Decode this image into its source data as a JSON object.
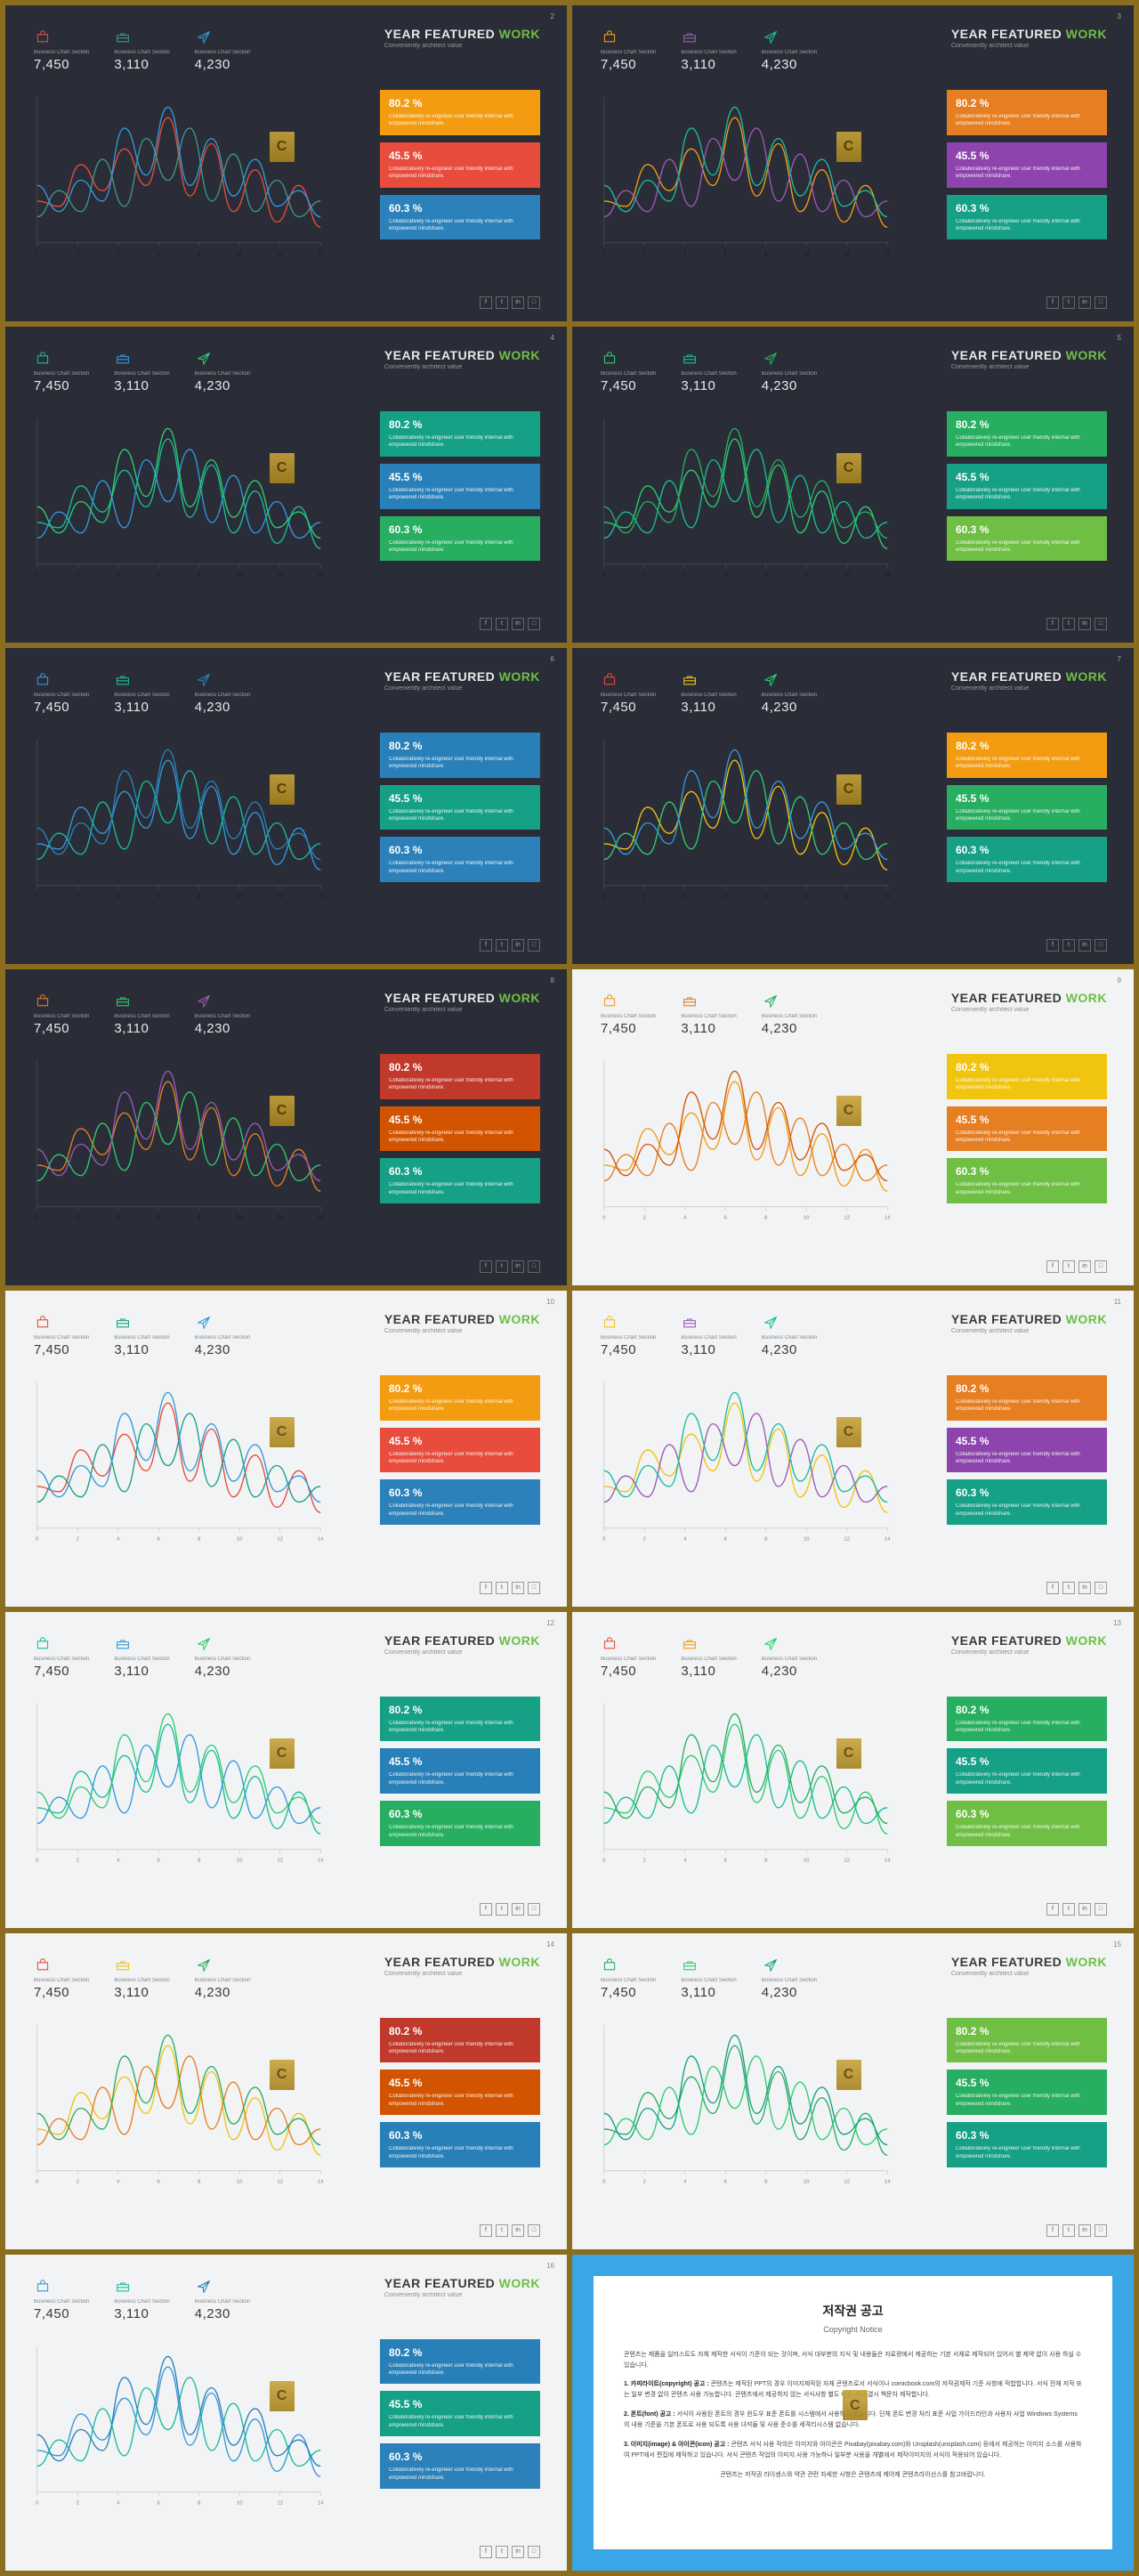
{
  "title": {
    "line1_a": "YEAR FEATURED ",
    "line1_b": "WORK",
    "sub": "Conveniently architect value"
  },
  "stats": [
    {
      "label": "Business Chart Section",
      "value": "7,450"
    },
    {
      "label": "Business Chart Section",
      "value": "3,110"
    },
    {
      "label": "Business Chart Section",
      "value": "4,230"
    }
  ],
  "kpi_text": {
    "desc": "Collaboratively re-engineer user friendly internal with empowered mindshare."
  },
  "kpi_pcts": [
    "80.2 %",
    "45.5 %",
    "60.3 %"
  ],
  "chart": {
    "xticks": [
      "0",
      "2",
      "4",
      "6",
      "8",
      "10",
      "12",
      "14"
    ],
    "series_y": {
      "a": [
        40,
        35,
        75,
        50,
        90,
        55,
        120,
        45,
        95,
        30,
        70,
        20,
        55,
        15
      ],
      "b": [
        25,
        50,
        30,
        80,
        35,
        100,
        60,
        110,
        40,
        85,
        30,
        60,
        25,
        40
      ],
      "c": [
        55,
        30,
        60,
        40,
        110,
        65,
        130,
        55,
        100,
        45,
        80,
        35,
        50,
        25
      ]
    }
  },
  "socials": [
    "f",
    "t",
    "in",
    "□"
  ],
  "watermark": "C",
  "palettes": [
    {
      "bg": "dark",
      "title_accent": "#6fbf44",
      "icons": [
        "#e84c3d",
        "#3f9688",
        "#3498db"
      ],
      "lines": [
        "#e84c3d",
        "#3f9688",
        "#3498db"
      ],
      "kpis": [
        "#f39c12",
        "#e74c3c",
        "#2c81ba"
      ]
    },
    {
      "bg": "dark",
      "title_accent": "#6fbf44",
      "icons": [
        "#f39c12",
        "#9b59b6",
        "#1abc9c"
      ],
      "lines": [
        "#f39c12",
        "#9b59b6",
        "#1abc9c"
      ],
      "kpis": [
        "#e67e22",
        "#8e44ad",
        "#16a085"
      ]
    },
    {
      "bg": "dark",
      "title_accent": "#6fbf44",
      "icons": [
        "#1abc9c",
        "#3498db",
        "#2ecc71"
      ],
      "lines": [
        "#1abc9c",
        "#3498db",
        "#2ecc71"
      ],
      "kpis": [
        "#16a085",
        "#2980b9",
        "#27ae60"
      ]
    },
    {
      "bg": "dark",
      "title_accent": "#6fbf44",
      "icons": [
        "#2ecc71",
        "#1abc9c",
        "#27ae60"
      ],
      "lines": [
        "#2ecc71",
        "#1abc9c",
        "#27ae60"
      ],
      "kpis": [
        "#27ae60",
        "#16a085",
        "#6fbf44"
      ]
    },
    {
      "bg": "dark",
      "title_accent": "#6fbf44",
      "icons": [
        "#3498db",
        "#1abc9c",
        "#2980b9"
      ],
      "lines": [
        "#3498db",
        "#1abc9c",
        "#2980b9"
      ],
      "kpis": [
        "#2980b9",
        "#16a085",
        "#2c81ba"
      ]
    },
    {
      "bg": "dark",
      "title_accent": "#6fbf44",
      "icons": [
        "#e74c3c",
        "#f1c40f",
        "#2ecc71"
      ],
      "lines": [
        "#f1c40f",
        "#2ecc71",
        "#3498db"
      ],
      "kpis": [
        "#f39c12",
        "#27ae60",
        "#16a085"
      ]
    },
    {
      "bg": "dark",
      "title_accent": "#6fbf44",
      "icons": [
        "#e67e22",
        "#2ecc71",
        "#9b59b6"
      ],
      "lines": [
        "#e67e22",
        "#2ecc71",
        "#9b59b6"
      ],
      "kpis": [
        "#c0392b",
        "#d35400",
        "#16a085"
      ]
    },
    {
      "bg": "light",
      "title_accent": "#6fbf44",
      "icons": [
        "#f39c12",
        "#e67e22",
        "#27ae60"
      ],
      "lines": [
        "#f39c12",
        "#e67e22",
        "#d35400"
      ],
      "kpis": [
        "#f1c40f",
        "#e67e22",
        "#6fbf44"
      ]
    },
    {
      "bg": "light",
      "title_accent": "#6fbf44",
      "icons": [
        "#e74c3c",
        "#16a085",
        "#3498db"
      ],
      "lines": [
        "#e74c3c",
        "#16a085",
        "#3498db"
      ],
      "kpis": [
        "#f39c12",
        "#e74c3c",
        "#2c81ba"
      ]
    },
    {
      "bg": "light",
      "title_accent": "#6fbf44",
      "icons": [
        "#f1c40f",
        "#9b59b6",
        "#1abc9c"
      ],
      "lines": [
        "#f1c40f",
        "#9b59b6",
        "#1abc9c"
      ],
      "kpis": [
        "#e67e22",
        "#8e44ad",
        "#16a085"
      ]
    },
    {
      "bg": "light",
      "title_accent": "#6fbf44",
      "icons": [
        "#1abc9c",
        "#3498db",
        "#2ecc71"
      ],
      "lines": [
        "#1abc9c",
        "#3498db",
        "#2ecc71"
      ],
      "kpis": [
        "#16a085",
        "#2980b9",
        "#27ae60"
      ]
    },
    {
      "bg": "light",
      "title_accent": "#6fbf44",
      "icons": [
        "#e74c3c",
        "#f39c12",
        "#2ecc71"
      ],
      "lines": [
        "#2ecc71",
        "#1abc9c",
        "#27ae60"
      ],
      "kpis": [
        "#27ae60",
        "#16a085",
        "#6fbf44"
      ]
    },
    {
      "bg": "light",
      "title_accent": "#6fbf44",
      "icons": [
        "#e74c3c",
        "#f1c40f",
        "#27ae60"
      ],
      "lines": [
        "#f1c40f",
        "#e67e22",
        "#27ae60"
      ],
      "kpis": [
        "#c0392b",
        "#d35400",
        "#2980b9"
      ]
    },
    {
      "bg": "light",
      "title_accent": "#6fbf44",
      "icons": [
        "#27ae60",
        "#2ecc71",
        "#16a085"
      ],
      "lines": [
        "#27ae60",
        "#2ecc71",
        "#16a085"
      ],
      "kpis": [
        "#6fbf44",
        "#27ae60",
        "#16a085"
      ]
    },
    {
      "bg": "light",
      "title_accent": "#6fbf44",
      "icons": [
        "#3498db",
        "#1abc9c",
        "#2980b9"
      ],
      "lines": [
        "#3498db",
        "#1abc9c",
        "#2980b9"
      ],
      "kpis": [
        "#2980b9",
        "#16a085",
        "#2c81ba"
      ]
    }
  ],
  "copyright": {
    "heading": "저작권 공고",
    "sub": "Copyright Notice",
    "para1": "콘텐츠는 제품을 일러스트도 자체 제작한 서식이 기준이 되는 것이며, 서식 대부분의 지식 및 내용들은 자료량에서 제공하는 기본 서체로 제작되어 있어서 별 제약 없이 사용 하실 수 있습니다.",
    "para2_head": "1. 카피라이트(copyright) 공고 :",
    "para2": "콘텐츠는 제작된 PPT의 경우 이미지제작된 자체 콘텐츠로서 서식이나 comicbook.com의 저작권제작 기준 사항에 적합합니다. 서식 전체 저작 또는 일부 변경 없이 콘텐츠 사용 가능합니다. 콘텐츠에서 제공하지 않는 서식사항 별도 내용 저작 결시 책문차 제작합니다.",
    "para3_head": "2. 폰트(font) 공고 :",
    "para3": "서식이 사용된 폰트의 경우 윈도우 표준 폰트를 시스템에서 사용하고 있습니다. 단체 폰트 변경 처리 표준 사업 가이드라인과 사용자 사업 Windows Systems의 내용 기준을 기본 폰트로 사용 되도록 사용 녀석들 및 사용 준수를 세격리시스템 없습니다.",
    "para4_head": "3. 이미지(image) & 아이콘(icon) 공고 :",
    "para4": "콘텐츠 서식 사용 작의은 이미지와 아이콘은 Pixabay(pixabay.com)와 Unsplash(unsplash.com) 등에서 제공하는 이미지 소스를 사용하여 PPT에서 편집에 제작하고 있습니다. 서식 콘텐츠 작업의 이미지 사용 가능하나 일부분 사용을 개별에서 제작이미지의 서식이 적용되어 있습니다.",
    "footer": "콘텐츠는 저작권 라이센스와 약관 관련 자세한 사항은 콘텐츠에 케어제 콘텐츠라이선스를 참고바랍니다."
  }
}
